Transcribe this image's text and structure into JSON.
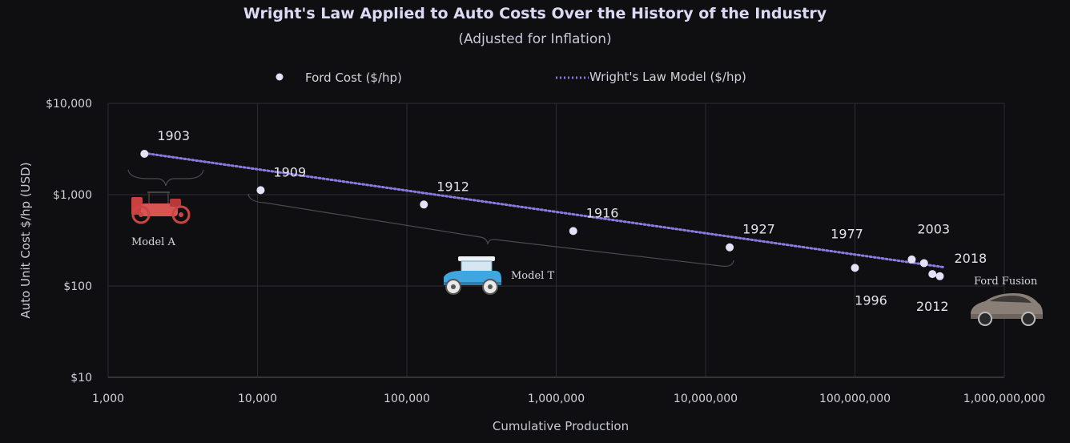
{
  "chart_data": {
    "type": "scatter",
    "title": "Wright's Law Applied to Auto Costs Over the History of the Industry",
    "subtitle": "(Adjusted for Inflation)",
    "xlabel": "Cumulative Production",
    "ylabel": "Auto Unit Cost $/hp (USD)",
    "x_scale": "log",
    "y_scale": "log",
    "xlim": [
      1000,
      1000000000
    ],
    "ylim": [
      10,
      10000
    ],
    "x_ticks": [
      1000,
      10000,
      100000,
      1000000,
      10000000,
      100000000,
      1000000000
    ],
    "x_tick_labels": [
      "1,000",
      "10,000",
      "100,000",
      "1,000,000",
      "10,000,000",
      "100,000,000",
      "1,000,000,000"
    ],
    "y_ticks": [
      10,
      100,
      1000,
      10000
    ],
    "y_tick_labels": [
      "$10",
      "$100",
      "$1,000",
      "$10,000"
    ],
    "legend": {
      "position": "top",
      "items": [
        {
          "label": "Ford Cost ($/hp)",
          "marker": "dot",
          "color": "#e4e2f6"
        },
        {
          "label": "Wright's Law Model ($/hp)",
          "marker": "dotted-line",
          "color": "#8a7be0"
        }
      ]
    },
    "series": [
      {
        "name": "Ford Cost ($/hp)",
        "points": [
          {
            "x": 1750,
            "y": 2800
          },
          {
            "x": 10500,
            "y": 1120
          },
          {
            "x": 130000,
            "y": 780
          },
          {
            "x": 1300000,
            "y": 400
          },
          {
            "x": 14500000,
            "y": 265
          },
          {
            "x": 100000000,
            "y": 158
          },
          {
            "x": 240000000,
            "y": 195
          },
          {
            "x": 290000000,
            "y": 178
          },
          {
            "x": 330000000,
            "y": 135
          },
          {
            "x": 370000000,
            "y": 128
          }
        ]
      },
      {
        "name": "Wright's Law Model ($/hp)",
        "points": [
          {
            "x": 1750,
            "y": 2850
          },
          {
            "x": 400000000,
            "y": 160
          }
        ]
      }
    ],
    "annotations": [
      {
        "text": "1903",
        "x": 1750,
        "y": 2800,
        "anchor": "above-right"
      },
      {
        "text": "1909",
        "x": 10500,
        "y": 1120,
        "anchor": "above-right"
      },
      {
        "text": "1912",
        "x": 130000,
        "y": 780,
        "anchor": "above-right"
      },
      {
        "text": "1916",
        "x": 1300000,
        "y": 400,
        "anchor": "above-right"
      },
      {
        "text": "1927",
        "x": 14500000,
        "y": 265,
        "anchor": "above-right"
      },
      {
        "text": "1977",
        "x": 100000000,
        "y": 158,
        "anchor": "above"
      },
      {
        "text": "1996",
        "x": 100000000,
        "y": 158,
        "anchor": "below"
      },
      {
        "text": "2003",
        "x": 290000000,
        "y": 178,
        "anchor": "above"
      },
      {
        "text": "2012",
        "x": 330000000,
        "y": 135,
        "anchor": "below"
      },
      {
        "text": "2018",
        "x": 370000000,
        "y": 128,
        "anchor": "above-right"
      }
    ],
    "car_labels": [
      {
        "text": "Model A",
        "color": "#d04a4a"
      },
      {
        "text": "Model T",
        "color": "#3fa6e0"
      },
      {
        "text": "Ford Fusion",
        "color": "#8a7f76"
      }
    ],
    "grid": true
  }
}
